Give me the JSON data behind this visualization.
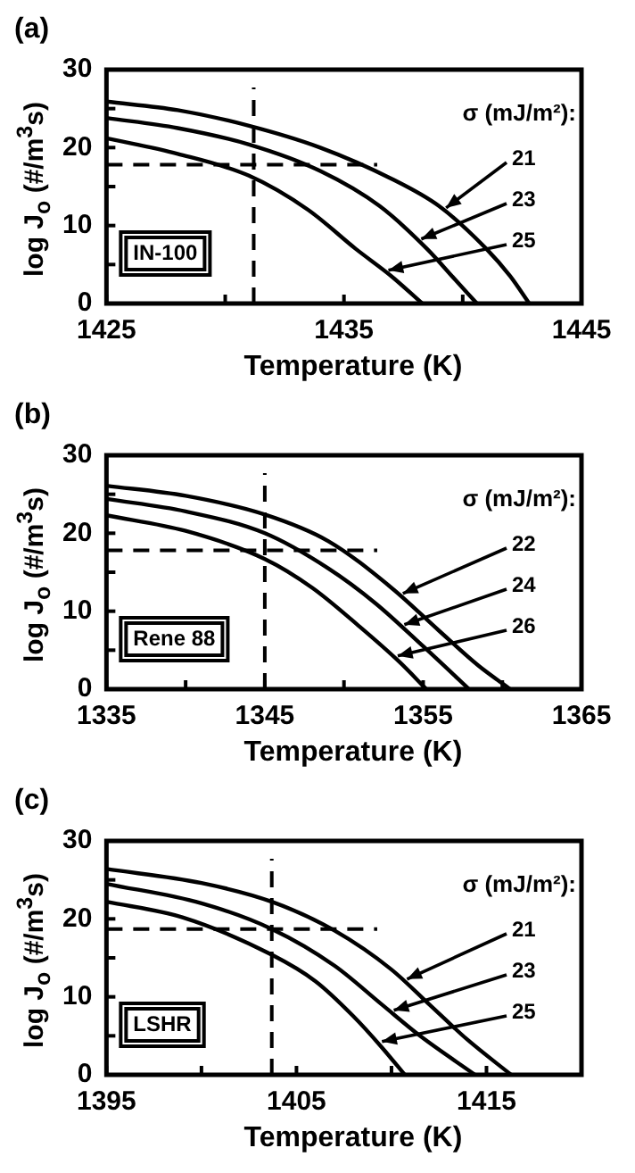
{
  "chart_data": [
    {
      "type": "line",
      "title": "(a)",
      "xlabel": "Temperature (K)",
      "ylabel": "log J$_{o}$ (#/m$^{3}$s)",
      "legend_title": "σ (mJ/m²):",
      "annotations": [
        "IN-100"
      ],
      "xlim": [
        1425,
        1445
      ],
      "xticks": [
        1425,
        {
          "value": 1430,
          "label": null
        },
        1435,
        {
          "value": 1440,
          "label": null
        },
        1445
      ],
      "ylim": [
        0,
        30
      ],
      "yticks": [
        0,
        {
          "value": 5,
          "label": null
        },
        10,
        {
          "value": 15,
          "label": null
        },
        20,
        {
          "value": 25,
          "label": null
        },
        30
      ],
      "marker": "none",
      "line_style": "solid",
      "ref_lines": [
        {
          "axis": "x",
          "value": 1431.2,
          "color": "#000000",
          "line_style": "dashed"
        },
        {
          "axis": "y",
          "value": 17.8,
          "color": "#000000",
          "line_style": "dashed"
        }
      ],
      "series": [
        {
          "name": "21",
          "color": "#000000",
          "x": [
            1425,
            1428,
            1431,
            1434,
            1437,
            1439,
            1441,
            1442,
            1442.8
          ],
          "values": [
            25.9,
            24.8,
            22.8,
            20,
            16,
            12.5,
            7,
            3.5,
            0
          ]
        },
        {
          "name": "23",
          "color": "#000000",
          "x": [
            1425,
            1428,
            1431,
            1434,
            1436.5,
            1438.5,
            1439.7,
            1440.6
          ],
          "values": [
            23.8,
            22.5,
            20.4,
            17,
            12.5,
            7,
            3,
            0
          ]
        },
        {
          "name": "25",
          "color": "#000000",
          "x": [
            1425,
            1428,
            1431,
            1433.5,
            1435.5,
            1437,
            1438.3
          ],
          "values": [
            21.2,
            19.2,
            16.4,
            12,
            7,
            3.5,
            0
          ]
        }
      ]
    },
    {
      "type": "line",
      "title": "(b)",
      "xlabel": "Temperature (K)",
      "ylabel": "log J$_{o}$ (#/m$^{3}$s)",
      "legend_title": "σ (mJ/m²):",
      "annotations": [
        "Rene 88"
      ],
      "xlim": [
        1335,
        1365
      ],
      "xticks": [
        1335,
        {
          "value": 1340,
          "label": null
        },
        1345,
        {
          "value": 1350,
          "label": null
        },
        1355,
        {
          "value": 1360,
          "label": null
        },
        1365
      ],
      "ylim": [
        0,
        30
      ],
      "yticks": [
        0,
        {
          "value": 5,
          "label": null
        },
        10,
        {
          "value": 15,
          "label": null
        },
        20,
        {
          "value": 25,
          "label": null
        },
        30
      ],
      "marker": "none",
      "line_style": "solid",
      "ref_lines": [
        {
          "axis": "x",
          "value": 1345,
          "color": "#000000",
          "line_style": "dashed"
        },
        {
          "axis": "y",
          "value": 17.8,
          "color": "#000000",
          "line_style": "dashed"
        }
      ],
      "series": [
        {
          "name": "22",
          "color": "#000000",
          "x": [
            1335,
            1340,
            1345,
            1349,
            1353,
            1356,
            1358.5,
            1360.5
          ],
          "values": [
            26.1,
            24.8,
            22.4,
            19,
            13,
            7.5,
            3,
            0
          ]
        },
        {
          "name": "24",
          "color": "#000000",
          "x": [
            1335,
            1340,
            1345,
            1349,
            1352,
            1355,
            1357.9
          ],
          "values": [
            24.4,
            22.8,
            20,
            15.5,
            11,
            5.5,
            0
          ]
        },
        {
          "name": "26",
          "color": "#000000",
          "x": [
            1335,
            1340,
            1345,
            1348,
            1351,
            1353.5,
            1355.2
          ],
          "values": [
            22.3,
            20.3,
            16.7,
            13,
            8,
            3.5,
            0
          ]
        }
      ]
    },
    {
      "type": "line",
      "title": "(c)",
      "xlabel": "Temperature (K)",
      "ylabel": "log J$_{o}$ (#/m$^{3}$s)",
      "legend_title": "σ (mJ/m²):",
      "annotations": [
        "LSHR"
      ],
      "xlim": [
        1395,
        1420
      ],
      "xticks": [
        1395,
        {
          "value": 1400,
          "label": null
        },
        1405,
        {
          "value": 1410,
          "label": null
        },
        1415
      ],
      "ylim": [
        0,
        30
      ],
      "yticks": [
        0,
        {
          "value": 5,
          "label": null
        },
        10,
        {
          "value": 15,
          "label": null
        },
        20,
        {
          "value": 25,
          "label": null
        },
        30
      ],
      "marker": "none",
      "line_style": "solid",
      "ref_lines": [
        {
          "axis": "x",
          "value": 1403.7,
          "color": "#000000",
          "line_style": "dashed"
        },
        {
          "axis": "y",
          "value": 18.7,
          "color": "#000000",
          "line_style": "dashed"
        }
      ],
      "series": [
        {
          "name": "21",
          "color": "#000000",
          "x": [
            1395,
            1400,
            1403.7,
            1407,
            1410,
            1412,
            1414,
            1416.3
          ],
          "values": [
            26.4,
            24.6,
            22.2,
            18.5,
            13.5,
            9,
            4.5,
            0
          ]
        },
        {
          "name": "23",
          "color": "#000000",
          "x": [
            1395,
            1400,
            1403.7,
            1407,
            1409.5,
            1411.5,
            1414.4
          ],
          "values": [
            24.5,
            22,
            18.7,
            14,
            9,
            5,
            0
          ]
        },
        {
          "name": "25",
          "color": "#000000",
          "x": [
            1395,
            1399,
            1403.7,
            1406,
            1408,
            1409.5,
            1410.7
          ],
          "values": [
            22.2,
            20.2,
            15.4,
            12,
            7.5,
            3.5,
            0
          ]
        }
      ]
    }
  ]
}
